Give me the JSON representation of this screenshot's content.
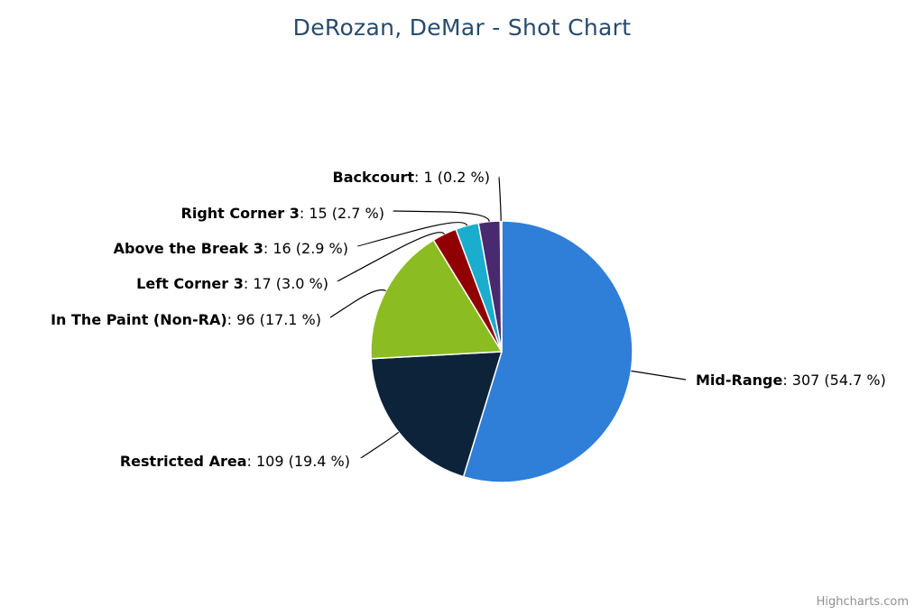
{
  "chart_data": {
    "type": "pie",
    "title": "DeRozan, DeMar - Shot Chart",
    "series": [
      {
        "points": [
          {
            "name": "Mid-Range",
            "value": 307,
            "percent": "54.7 %",
            "color": "#2f7ed8"
          },
          {
            "name": "Restricted Area",
            "value": 109,
            "percent": "19.4 %",
            "color": "#0d233a"
          },
          {
            "name": "In The Paint (Non-RA)",
            "value": 96,
            "percent": "17.1 %",
            "color": "#8bbc21"
          },
          {
            "name": "Left Corner 3",
            "value": 17,
            "percent": "3.0 %",
            "color": "#910000"
          },
          {
            "name": "Above the Break 3",
            "value": 16,
            "percent": "2.9 %",
            "color": "#1aadce"
          },
          {
            "name": "Right Corner 3",
            "value": 15,
            "percent": "2.7 %",
            "color": "#492970"
          },
          {
            "name": "Backcourt",
            "value": 1,
            "percent": "0.2 %",
            "color": "#f28f43"
          }
        ]
      }
    ]
  },
  "credits": "Highcharts.com"
}
